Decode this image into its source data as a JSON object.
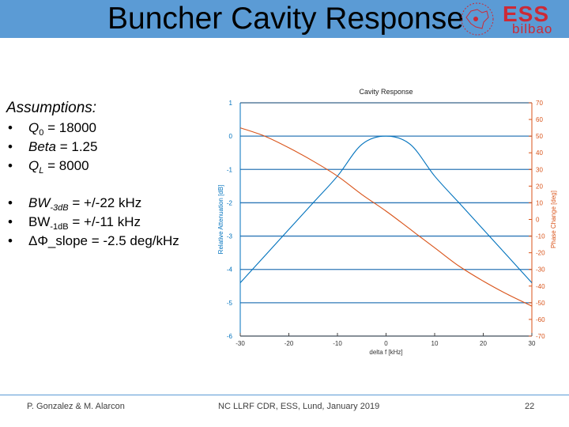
{
  "slide": {
    "title": "Buncher Cavity Response",
    "logo_text": "ESS",
    "logo_subtext": "bilbao"
  },
  "assumptions": {
    "heading": "Assumptions:",
    "items": [
      {
        "label": "Q",
        "sub": "0",
        "value": " = 18000"
      },
      {
        "label": "Beta",
        "value": " = 1.25"
      },
      {
        "label": "Q",
        "sub": "L",
        "value": " = 8000"
      },
      {
        "label": "BW",
        "sub": "-3dB",
        "value": " = +/-22 kHz"
      },
      {
        "label": "BW",
        "sub": "-1dB",
        "value": " = +/-11 kHz"
      },
      {
        "label": "ΔΦ_slope",
        "value": " = -2.5 deg/kHz"
      }
    ]
  },
  "chart_data": {
    "type": "line",
    "title": "Cavity Response",
    "xlabel": "delta f [kHz]",
    "ylabel": "Relative Attenuation [dB]",
    "y2label": "Phase Change [deg]",
    "xlim": [
      -30,
      30
    ],
    "ylim": [
      -6,
      1
    ],
    "y2lim": [
      -70,
      70
    ],
    "xticks": [
      -30,
      -20,
      -10,
      0,
      10,
      20,
      30
    ],
    "yticks": [
      1,
      0,
      -1,
      -2,
      -3,
      -4,
      -5,
      -6
    ],
    "y2ticks": [
      70,
      60,
      50,
      40,
      30,
      20,
      10,
      0,
      -10,
      -20,
      -30,
      -40,
      -50,
      -60,
      -70
    ],
    "grid": "horizontal",
    "series": [
      {
        "axis": "left",
        "color": "#0072bd",
        "x": [
          -30,
          -25,
          -20,
          -15,
          -10,
          -5,
          0,
          5,
          10,
          15,
          20,
          25,
          30
        ],
        "y": [
          -4.4,
          -3.6,
          -2.8,
          -2.0,
          -1.2,
          -0.25,
          0,
          -0.25,
          -1.2,
          -2.0,
          -2.8,
          -3.6,
          -4.4
        ]
      },
      {
        "axis": "right",
        "color": "#d95319",
        "x": [
          -30,
          -25,
          -20,
          -15,
          -10,
          -5,
          0,
          5,
          10,
          15,
          20,
          25,
          30
        ],
        "y": [
          55,
          50,
          43,
          35,
          26,
          15,
          5,
          -6,
          -17,
          -28,
          -37,
          -45,
          -52
        ]
      }
    ]
  },
  "footer": {
    "left": "P. Gonzalez & M. Alarcon",
    "center": "NC LLRF CDR, ESS, Lund, January 2019",
    "right": "22"
  }
}
